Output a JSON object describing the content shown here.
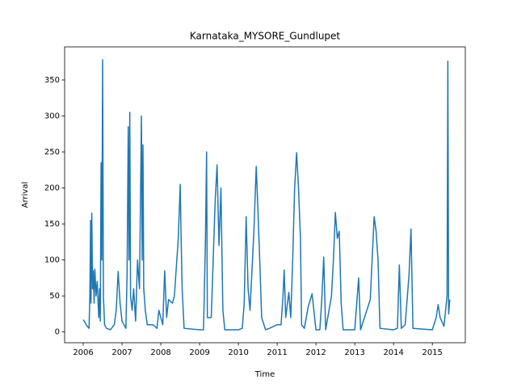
{
  "chart_data": {
    "type": "line",
    "title": "Karnataka_MYSORE_Gundlupet",
    "xlabel": "Time",
    "ylabel": "Arrival",
    "color": "#1f77b4",
    "x": [
      2006.0,
      2006.1,
      2006.15,
      2006.17,
      2006.19,
      2006.2,
      2006.22,
      2006.24,
      2006.26,
      2006.28,
      2006.3,
      2006.33,
      2006.36,
      2006.4,
      2006.42,
      2006.44,
      2006.46,
      2006.48,
      2006.5,
      2006.52,
      2006.55,
      2006.6,
      2006.7,
      2006.8,
      2006.85,
      2006.9,
      2006.95,
      2007.0,
      2007.1,
      2007.13,
      2007.16,
      2007.18,
      2007.2,
      2007.22,
      2007.26,
      2007.3,
      2007.35,
      2007.4,
      2007.45,
      2007.5,
      2007.52,
      2007.54,
      2007.56,
      2007.6,
      2007.65,
      2007.8,
      2007.9,
      2007.95,
      2008.05,
      2008.1,
      2008.15,
      2008.2,
      2008.3,
      2008.35,
      2008.45,
      2008.5,
      2008.52,
      2008.55,
      2008.6,
      2009.0,
      2009.1,
      2009.15,
      2009.18,
      2009.2,
      2009.3,
      2009.4,
      2009.45,
      2009.5,
      2009.55,
      2009.6,
      2009.65,
      2010.0,
      2010.1,
      2010.15,
      2010.2,
      2010.25,
      2010.3,
      2010.4,
      2010.46,
      2010.5,
      2010.55,
      2010.6,
      2010.7,
      2010.8,
      2011.0,
      2011.1,
      2011.15,
      2011.18,
      2011.22,
      2011.3,
      2011.35,
      2011.4,
      2011.45,
      2011.5,
      2011.55,
      2011.6,
      2011.63,
      2011.7,
      2011.8,
      2011.9,
      2012.0,
      2012.1,
      2012.15,
      2012.2,
      2012.25,
      2012.4,
      2012.45,
      2012.5,
      2012.55,
      2012.6,
      2012.65,
      2012.7,
      2013.0,
      2013.1,
      2013.15,
      2013.4,
      2013.5,
      2013.55,
      2013.6,
      2013.65,
      2014.0,
      2014.1,
      2014.15,
      2014.2,
      2014.3,
      2014.4,
      2014.45,
      2014.5,
      2015.0,
      2015.1,
      2015.15,
      2015.2,
      2015.3,
      2015.38,
      2015.4,
      2015.42,
      2015.45
    ],
    "values": [
      17,
      8,
      5,
      50,
      155,
      40,
      165,
      60,
      85,
      40,
      87,
      50,
      70,
      20,
      60,
      15,
      235,
      100,
      378,
      50,
      10,
      5,
      3,
      10,
      30,
      84,
      40,
      15,
      5,
      80,
      285,
      100,
      305,
      50,
      30,
      60,
      15,
      100,
      60,
      300,
      100,
      260,
      60,
      30,
      10,
      10,
      5,
      30,
      10,
      85,
      20,
      45,
      40,
      50,
      130,
      205,
      140,
      60,
      5,
      3,
      3,
      125,
      250,
      20,
      20,
      180,
      232,
      120,
      200,
      30,
      3,
      3,
      5,
      40,
      160,
      60,
      30,
      140,
      230,
      175,
      100,
      20,
      3,
      5,
      10,
      10,
      50,
      86,
      20,
      55,
      20,
      100,
      200,
      249,
      200,
      130,
      10,
      5,
      35,
      53,
      3,
      3,
      45,
      104,
      3,
      50,
      100,
      166,
      130,
      140,
      40,
      3,
      3,
      75,
      3,
      45,
      160,
      140,
      100,
      5,
      3,
      5,
      93,
      5,
      10,
      80,
      143,
      5,
      3,
      20,
      38,
      20,
      8,
      50,
      376,
      25,
      45
    ],
    "xlim": [
      2005.52,
      2015.85
    ],
    "ylim": [
      -15,
      396
    ],
    "xticks": [
      2006,
      2007,
      2008,
      2009,
      2010,
      2011,
      2012,
      2013,
      2014,
      2015
    ],
    "yticks": [
      0,
      50,
      100,
      150,
      200,
      250,
      300,
      350
    ]
  }
}
